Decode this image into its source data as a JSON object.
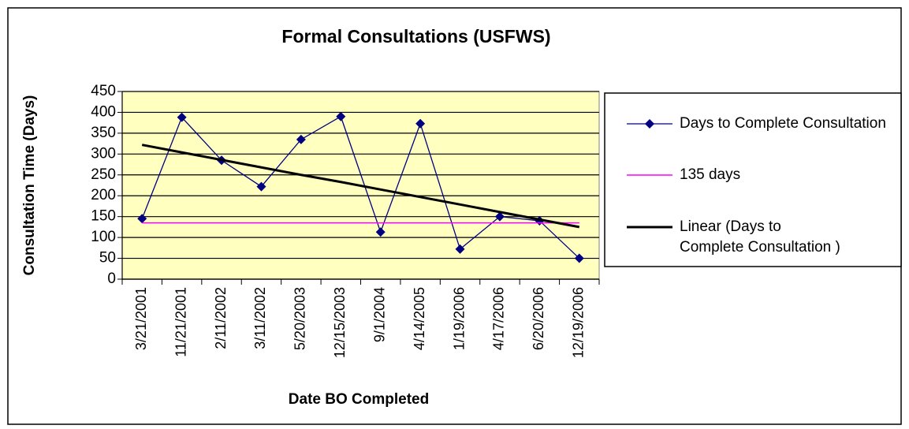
{
  "chart_data": {
    "type": "line",
    "title": "Formal Consultations (USFWS)",
    "x_label": "Date BO Completed",
    "y_label": "Consultation Time (Days)",
    "categories": [
      "3/21/2001",
      "11/21/2001",
      "2/11/2002",
      "3/11/2002",
      "5/20/2003",
      "12/15/2003",
      "9/1/2004",
      "4/14/2005",
      "1/19/2006",
      "4/17/2006",
      "6/20/2006",
      "12/19/2006"
    ],
    "series": [
      {
        "name": "Days to Complete Consultation",
        "color": "#000080",
        "marker": "diamond",
        "values": [
          145,
          388,
          285,
          222,
          335,
          390,
          113,
          373,
          72,
          150,
          140,
          50
        ]
      },
      {
        "name": "135 days",
        "color": "#ff00ff",
        "values": [
          135,
          135,
          135,
          135,
          135,
          135,
          135,
          135,
          135,
          135,
          135,
          135
        ]
      },
      {
        "name": "Linear (Days to Complete Consultation )",
        "color": "#000000",
        "values": [
          322,
          304,
          286,
          268,
          250,
          233,
          215,
          197,
          179,
          161,
          143,
          125
        ]
      }
    ],
    "ylim": [
      0,
      450
    ],
    "yticks": [
      0,
      50,
      100,
      150,
      200,
      250,
      300,
      350,
      400,
      450
    ],
    "grid": true,
    "plot_background": "#ffffc0",
    "legend": "right"
  }
}
